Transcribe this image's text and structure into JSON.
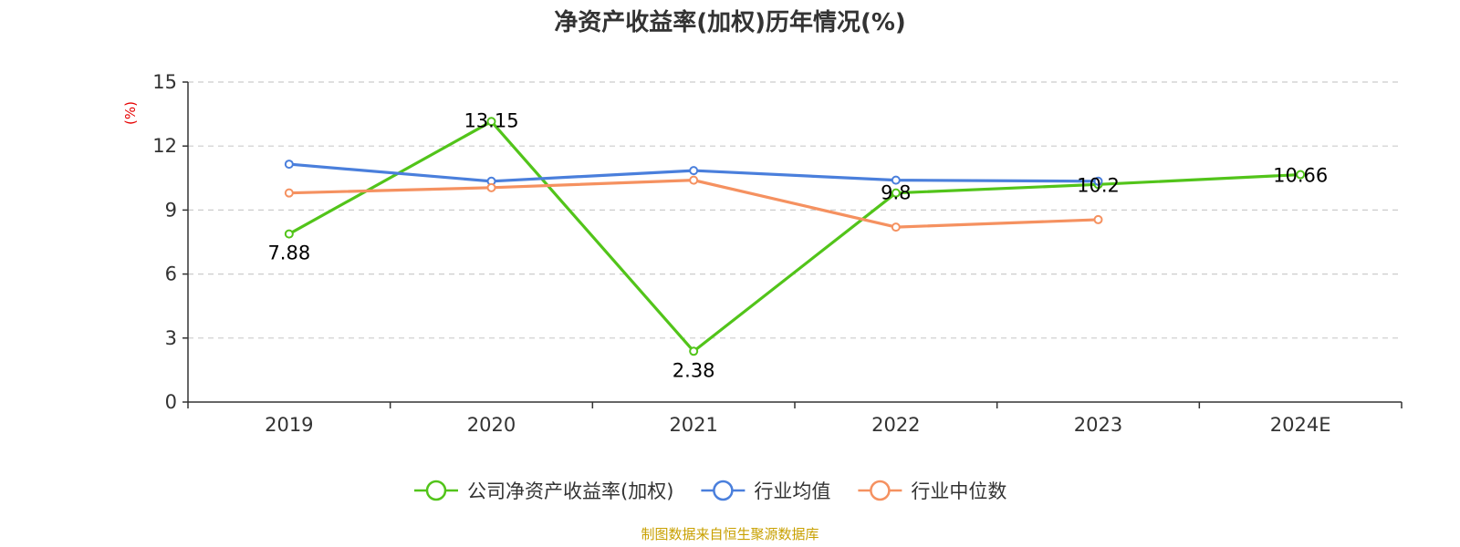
{
  "chart_data": {
    "type": "line",
    "title": "净资产收益率(加权)历年情况(%)",
    "ylabel": "(%)",
    "xlabel": "",
    "categories": [
      "2019",
      "2020",
      "2021",
      "2022",
      "2023",
      "2024E"
    ],
    "ylim": [
      0,
      15
    ],
    "yticks": [
      0,
      3,
      6,
      9,
      12,
      15
    ],
    "grid": true,
    "legend_position": "bottom",
    "series": [
      {
        "name": "公司净资产收益率(加权)",
        "color": "#52c41a",
        "values": [
          7.88,
          13.15,
          2.38,
          9.8,
          10.2,
          10.66
        ],
        "labels": [
          "7.88",
          "13.15",
          "2.38",
          "9.8",
          "10.2",
          "10.66"
        ]
      },
      {
        "name": "行业均值",
        "color": "#4a7fdc",
        "values": [
          11.15,
          10.35,
          10.85,
          10.4,
          10.35,
          null
        ]
      },
      {
        "name": "行业中位数",
        "color": "#f59160",
        "values": [
          9.8,
          10.05,
          10.4,
          8.2,
          8.55,
          null
        ]
      }
    ]
  },
  "unit_label_color": "#e60000",
  "source": {
    "text": "制图数据来自恒生聚源数据库",
    "color": "#c8a000"
  }
}
